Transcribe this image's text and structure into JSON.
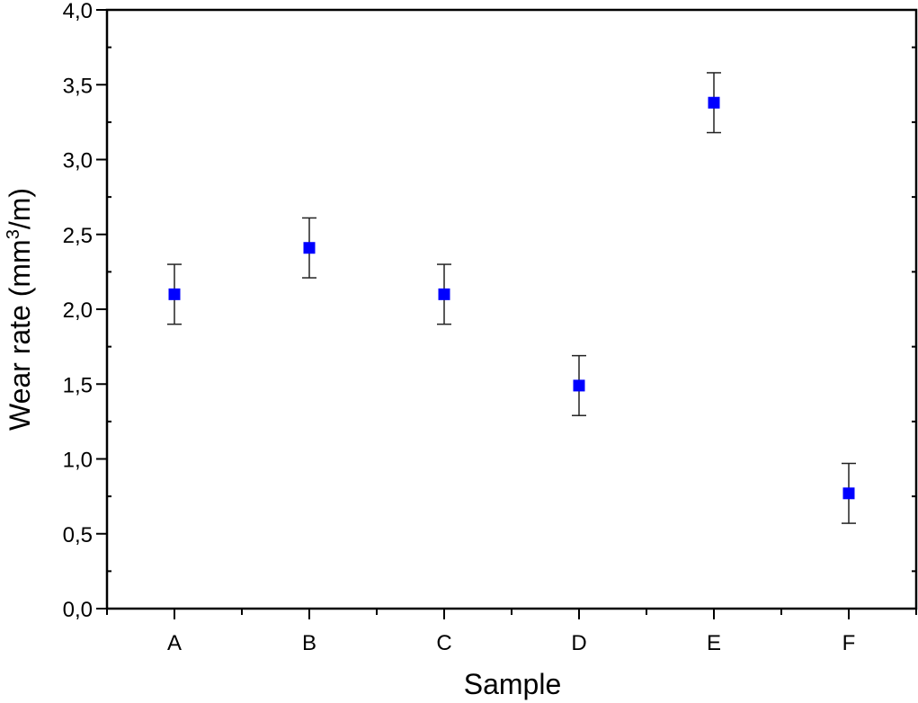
{
  "chart_data": {
    "type": "scatter",
    "title": "",
    "xlabel": "Sample",
    "ylabel": "Wear rate (mm³/m)",
    "ylabel_parts": {
      "pre": "Wear rate (mm",
      "sup": "3",
      "post": "/m)"
    },
    "categories": [
      "A",
      "B",
      "C",
      "D",
      "E",
      "F"
    ],
    "series": [
      {
        "name": "Wear rate",
        "color": "#0000ff",
        "marker": "square",
        "values": [
          2.1,
          2.41,
          2.1,
          1.49,
          3.38,
          0.77
        ],
        "error": [
          0.2,
          0.2,
          0.2,
          0.2,
          0.2,
          0.2
        ]
      }
    ],
    "ylim": [
      0.0,
      4.0
    ],
    "yticks": [
      "0,0",
      "0,5",
      "1,0",
      "1,5",
      "2,0",
      "2,5",
      "3,0",
      "3,5",
      "4,0"
    ],
    "ytick_values": [
      0,
      0.5,
      1.0,
      1.5,
      2.0,
      2.5,
      3.0,
      3.5,
      4.0
    ],
    "grid": false,
    "legend": null
  }
}
